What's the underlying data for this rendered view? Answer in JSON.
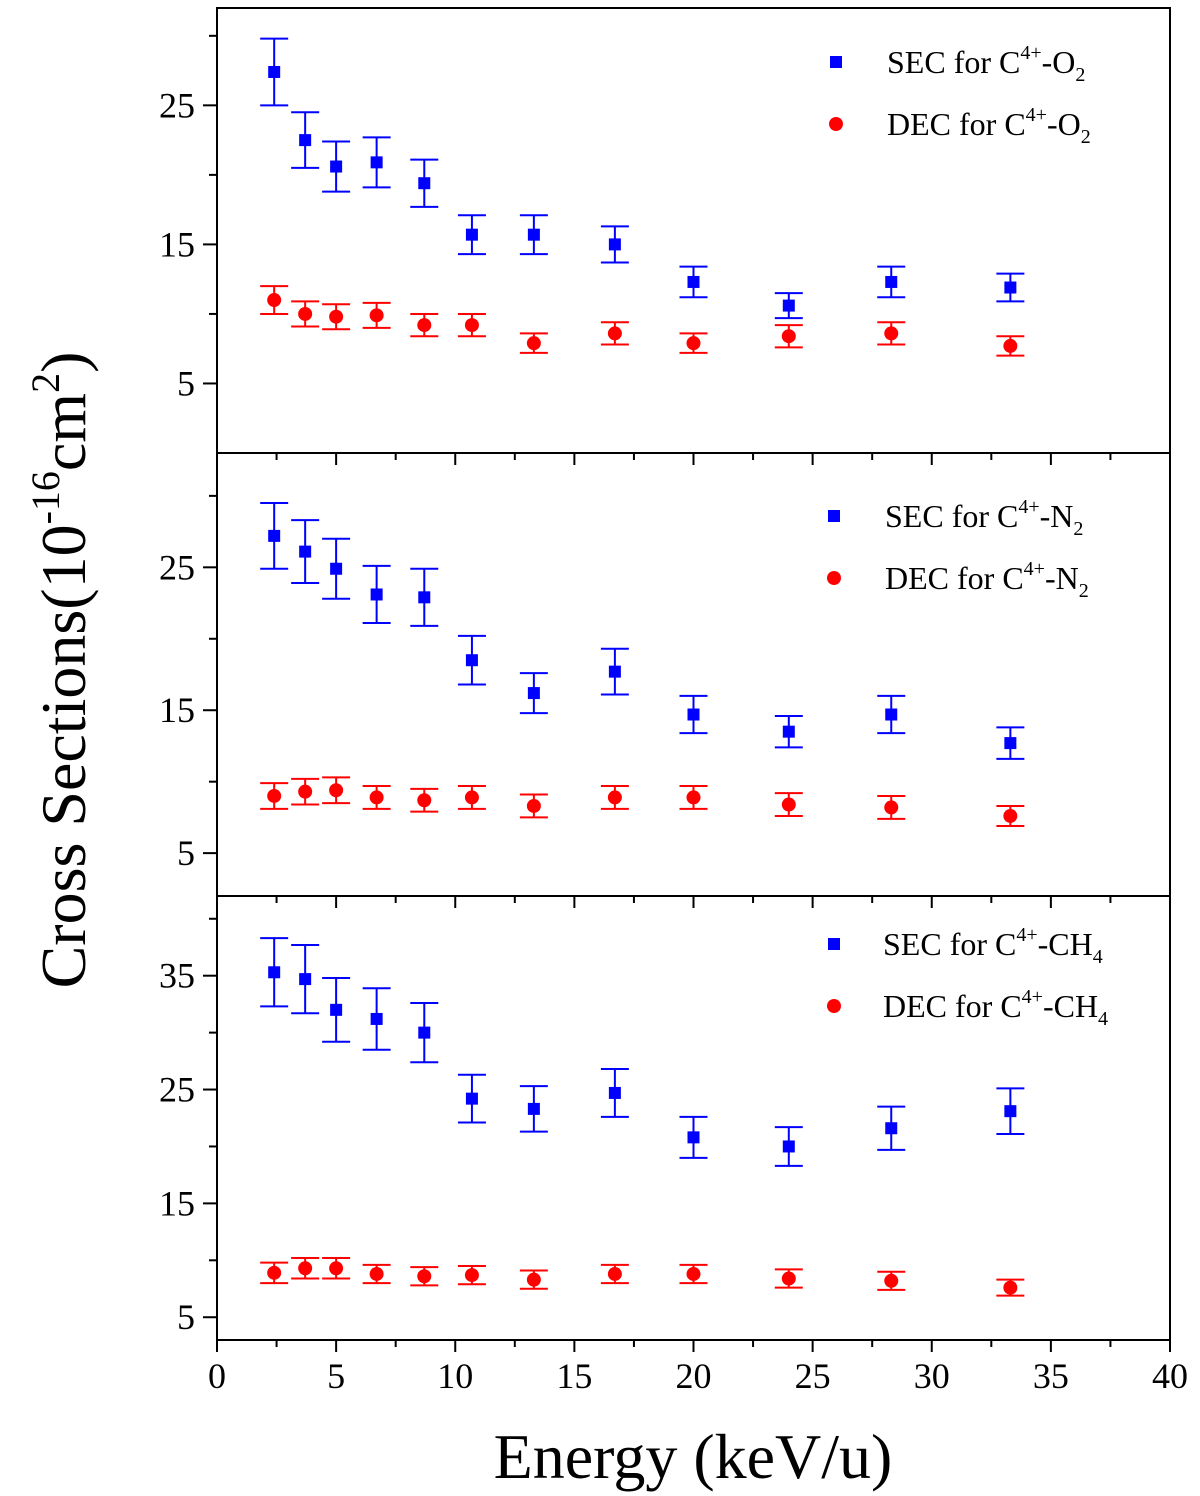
{
  "colors": {
    "sec": "#0000FF",
    "dec": "#FF0000",
    "frame": "#000000"
  },
  "xlabel": "Energy (keV/u)",
  "ylabel": {
    "base": "Cross Sections(10",
    "exp": "-16",
    "mid": "cm",
    "exp2": "2",
    "end": ")"
  },
  "chart_data": [
    {
      "type": "scatter",
      "panel": "top",
      "xlim": [
        0,
        40
      ],
      "ylim": [
        0,
        32
      ],
      "yticks": [
        5,
        15,
        25
      ],
      "legend_placement": "top-right",
      "series": [
        {
          "legend": {
            "text": "SEC for C",
            "sup": "4+",
            "mid": "-O",
            "sub": "2"
          },
          "marker": "square",
          "x": [
            2.4,
            3.7,
            5.0,
            6.7,
            8.7,
            10.7,
            13.3,
            16.7,
            20.0,
            24.0,
            28.3,
            33.3
          ],
          "y": [
            27.4,
            22.5,
            20.6,
            20.9,
            19.4,
            15.7,
            15.7,
            15.0,
            12.3,
            10.6,
            12.3,
            11.9
          ],
          "err": [
            2.4,
            2.0,
            1.8,
            1.8,
            1.7,
            1.4,
            1.4,
            1.3,
            1.1,
            0.9,
            1.1,
            1.0
          ]
        },
        {
          "legend": {
            "text": "DEC for C",
            "sup": "4+",
            "mid": "-O",
            "sub": "2"
          },
          "marker": "circle",
          "x": [
            2.4,
            3.7,
            5.0,
            6.7,
            8.7,
            10.7,
            13.3,
            16.7,
            20.0,
            24.0,
            28.3,
            33.3
          ],
          "y": [
            11.0,
            10.0,
            9.8,
            9.9,
            9.2,
            9.2,
            7.9,
            8.6,
            7.9,
            8.4,
            8.6,
            7.7
          ],
          "err": [
            1.0,
            0.9,
            0.9,
            0.9,
            0.8,
            0.8,
            0.7,
            0.8,
            0.7,
            0.8,
            0.8,
            0.7
          ]
        }
      ],
      "xlabel": "",
      "ylabel": ""
    },
    {
      "type": "scatter",
      "panel": "middle",
      "xlim": [
        0,
        40
      ],
      "ylim": [
        2,
        33
      ],
      "yticks": [
        5,
        15,
        25
      ],
      "legend_placement": "top-right",
      "series": [
        {
          "legend": {
            "text": "SEC for C",
            "sup": "4+",
            "mid": "-N",
            "sub": "2"
          },
          "marker": "square",
          "x": [
            2.4,
            3.7,
            5.0,
            6.7,
            8.7,
            10.7,
            13.3,
            16.7,
            20.0,
            24.0,
            28.3,
            33.3
          ],
          "y": [
            27.2,
            26.1,
            24.9,
            23.1,
            22.9,
            18.5,
            16.2,
            17.7,
            14.7,
            13.5,
            14.7,
            12.7
          ],
          "err": [
            2.3,
            2.2,
            2.1,
            2.0,
            2.0,
            1.7,
            1.4,
            1.6,
            1.3,
            1.1,
            1.3,
            1.1
          ]
        },
        {
          "legend": {
            "text": "DEC for C",
            "sup": "4+",
            "mid": "-N",
            "sub": "2"
          },
          "marker": "circle",
          "x": [
            2.4,
            3.7,
            5.0,
            6.7,
            8.7,
            10.7,
            13.3,
            16.7,
            20.0,
            24.0,
            28.3,
            33.3
          ],
          "y": [
            9.0,
            9.3,
            9.4,
            8.9,
            8.7,
            8.9,
            8.3,
            8.9,
            8.9,
            8.4,
            8.2,
            7.6
          ],
          "err": [
            0.9,
            0.9,
            0.9,
            0.8,
            0.8,
            0.8,
            0.8,
            0.8,
            0.8,
            0.8,
            0.8,
            0.7
          ]
        }
      ],
      "xlabel": "",
      "ylabel": ""
    },
    {
      "type": "scatter",
      "panel": "bottom",
      "xlim": [
        0,
        40
      ],
      "ylim": [
        3,
        42
      ],
      "yticks": [
        5,
        15,
        25,
        35
      ],
      "xticks": [
        0,
        5,
        10,
        15,
        20,
        25,
        30,
        35,
        40
      ],
      "legend_placement": "top-right",
      "series": [
        {
          "legend": {
            "text": "SEC for C",
            "sup": "4+",
            "mid": "-CH",
            "sub": "4"
          },
          "marker": "square",
          "x": [
            2.4,
            3.7,
            5.0,
            6.7,
            8.7,
            10.7,
            13.3,
            16.7,
            20.0,
            24.0,
            28.3,
            33.3
          ],
          "y": [
            35.3,
            34.7,
            32.0,
            31.2,
            30.0,
            24.2,
            23.3,
            24.7,
            20.8,
            20.0,
            21.6,
            23.1
          ],
          "err": [
            3.0,
            3.0,
            2.8,
            2.7,
            2.6,
            2.1,
            2.0,
            2.1,
            1.8,
            1.7,
            1.9,
            2.0
          ]
        },
        {
          "legend": {
            "text": "DEC for C",
            "sup": "4+",
            "mid": "-CH",
            "sub": "4"
          },
          "marker": "circle",
          "x": [
            2.4,
            3.7,
            5.0,
            6.7,
            8.7,
            10.7,
            13.3,
            16.7,
            20.0,
            24.0,
            28.3,
            33.3
          ],
          "y": [
            8.9,
            9.3,
            9.3,
            8.8,
            8.6,
            8.7,
            8.3,
            8.8,
            8.8,
            8.4,
            8.2,
            7.6
          ],
          "err": [
            0.9,
            0.9,
            0.9,
            0.8,
            0.8,
            0.8,
            0.8,
            0.8,
            0.8,
            0.8,
            0.8,
            0.7
          ]
        }
      ],
      "xlabel": "",
      "ylabel": ""
    }
  ]
}
